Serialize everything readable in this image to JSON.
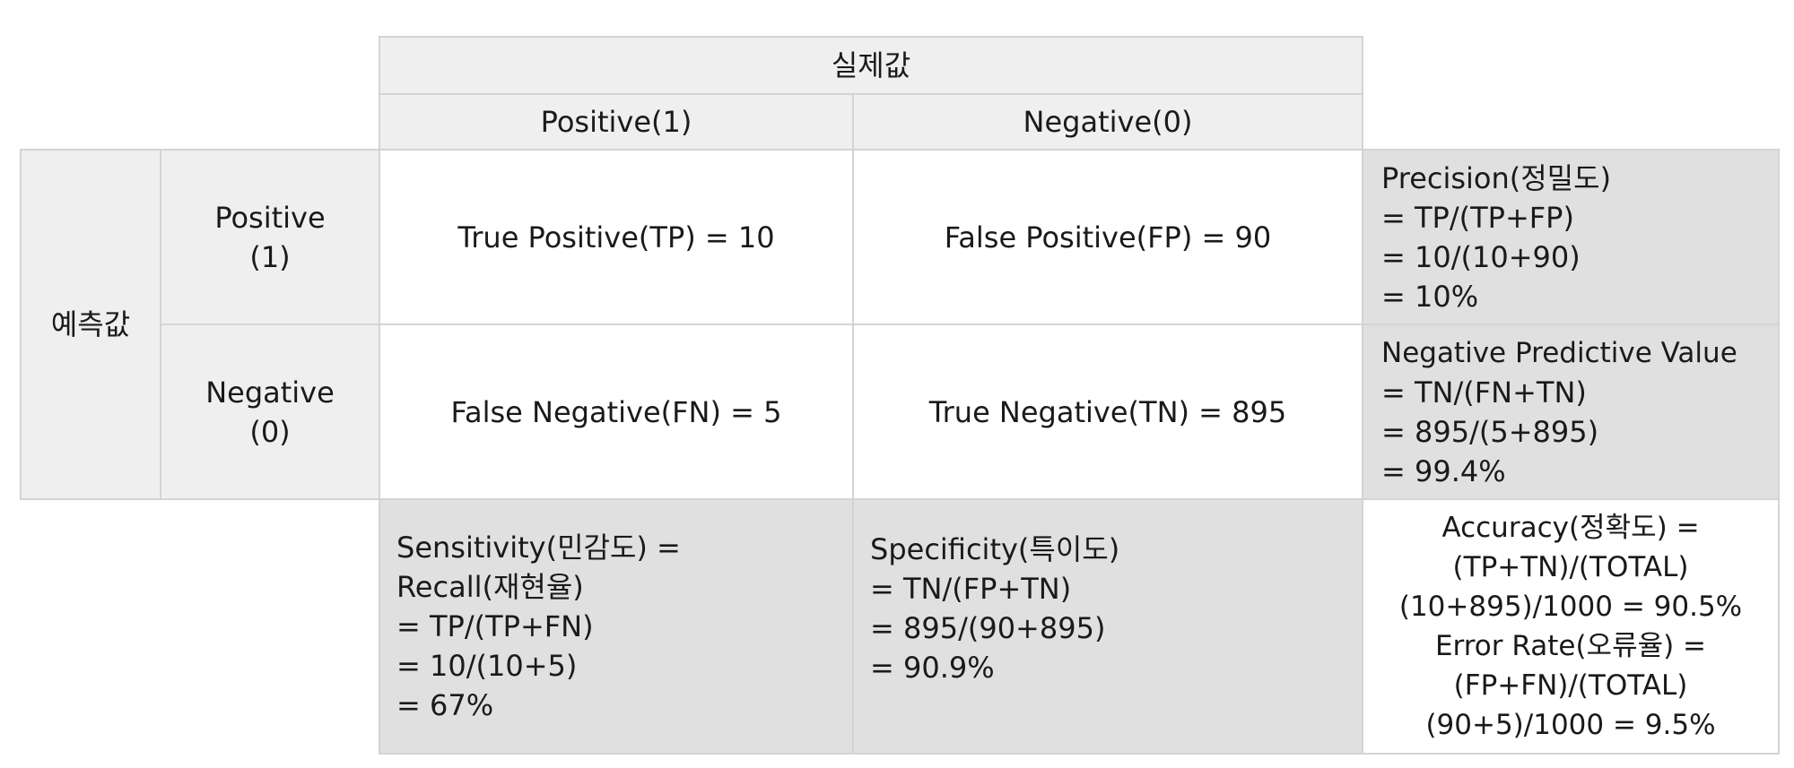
{
  "table": {
    "actual_header": "실제값",
    "predicted_header": "예측값",
    "col_positive": "Positive(1)",
    "col_negative": "Negative(0)",
    "row_positive": [
      "Positive",
      "(1)"
    ],
    "row_negative": [
      "Negative",
      "(0)"
    ],
    "tp": "True Positive(TP) = 10",
    "fp": "False Positive(FP) = 90",
    "fn": "False Negative(FN) = 5",
    "tn": "True Negative(TN) = 895",
    "precision": [
      "Precision(정밀도)",
      "= TP/(TP+FP)",
      "= 10/(10+90)",
      "= 10%"
    ],
    "npv": [
      "Negative Predictive Value",
      "= TN/(FN+TN)",
      "= 895/(5+895)",
      "= 99.4%"
    ],
    "sensitivity": [
      "Sensitivity(민감도) =",
      "Recall(재현율)",
      "= TP/(TP+FN)",
      "= 10/(10+5)",
      "= 67%"
    ],
    "specificity": [
      "Specificity(특이도)",
      "= TN/(FP+TN)",
      "= 895/(90+895)",
      "= 90.9%"
    ],
    "accuracy": [
      "Accuracy(정확도) =",
      "(TP+TN)/(TOTAL)",
      "(10+895)/1000 = 90.5%",
      "Error Rate(오류율) =",
      "(FP+FN)/(TOTAL)",
      "(90+5)/1000 = 9.5%"
    ]
  },
  "colors": {
    "header_bg": "#efefef",
    "metric_bg": "#e0e0e0",
    "border": "#d4d4d4"
  }
}
